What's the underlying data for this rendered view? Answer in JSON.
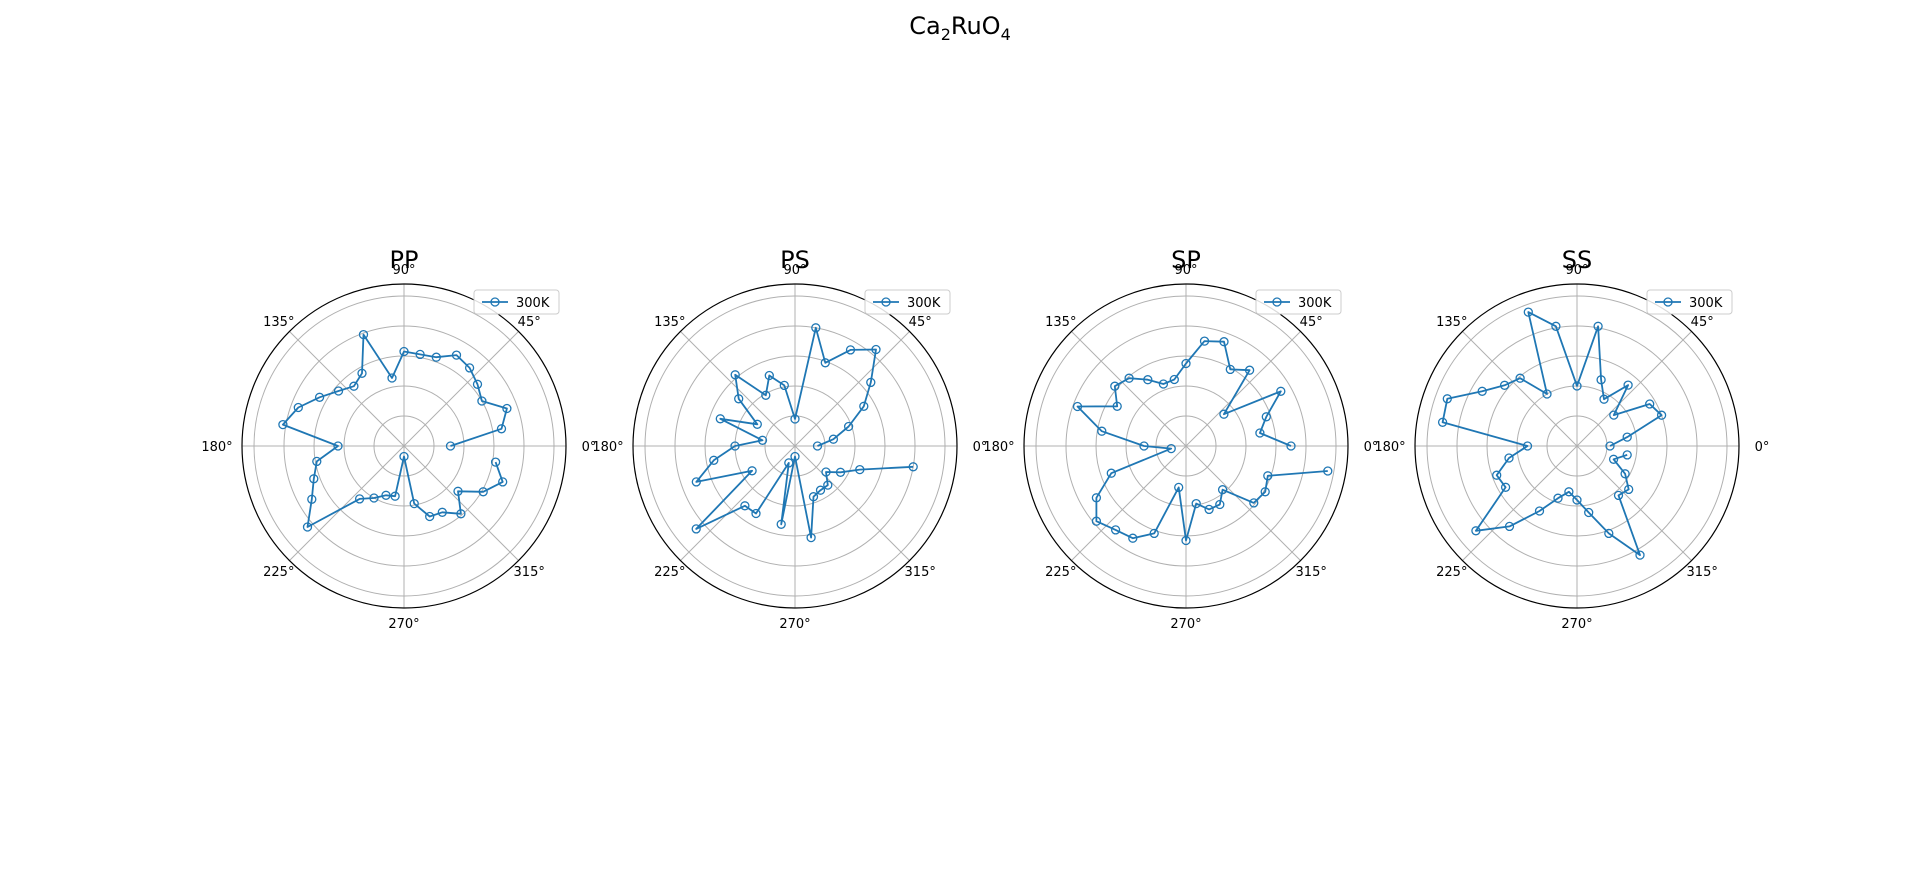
{
  "figure": {
    "suptitle": {
      "main": "Ca",
      "sub1": "2",
      "mid": "RuO",
      "sub2": "4"
    },
    "line_color": "#1f77b4",
    "grid_color": "#b0b0b0"
  },
  "chart_data": [
    {
      "type": "line",
      "projection": "polar",
      "title": "PP",
      "theta_ticks": [
        "0°",
        "45°",
        "90°",
        "135°",
        "180°",
        "225°",
        "270°",
        "315°"
      ],
      "r_rings": 5,
      "rmax": 1.0,
      "legend": {
        "label": "300K",
        "placement": "upper-right",
        "marker": "open-circle"
      },
      "series": [
        {
          "name": "300K",
          "theta_deg": [
            0,
            10,
            20,
            30,
            40,
            50,
            60,
            70,
            80,
            90,
            100,
            110,
            120,
            130,
            140,
            150,
            160,
            170,
            180,
            190,
            200,
            210,
            220,
            230,
            240,
            250,
            260,
            270,
            280,
            290,
            300,
            310,
            320,
            330,
            340,
            350
          ],
          "r": [
            0.31,
            0.66,
            0.73,
            0.6,
            0.64,
            0.68,
            0.7,
            0.63,
            0.62,
            0.63,
            0.46,
            0.79,
            0.56,
            0.52,
            0.57,
            0.65,
            0.75,
            0.82,
            0.44,
            0.59,
            0.64,
            0.71,
            0.84,
            0.46,
            0.4,
            0.35,
            0.34,
            0.07,
            0.39,
            0.5,
            0.51,
            0.59,
            0.47,
            0.61,
            0.7,
            0.62
          ]
        }
      ]
    },
    {
      "type": "line",
      "projection": "polar",
      "title": "PS",
      "theta_ticks": [
        "0°",
        "45°",
        "90°",
        "135°",
        "180°",
        "225°",
        "270°",
        "315°"
      ],
      "r_rings": 5,
      "rmax": 1.0,
      "legend": {
        "label": "300K",
        "placement": "upper-right",
        "marker": "open-circle"
      },
      "series": [
        {
          "name": "300K",
          "theta_deg": [
            0,
            10,
            20,
            30,
            40,
            50,
            60,
            70,
            80,
            90,
            100,
            110,
            120,
            130,
            140,
            150,
            160,
            170,
            180,
            190,
            200,
            210,
            220,
            230,
            240,
            250,
            260,
            270,
            280,
            290,
            300,
            310,
            320,
            330,
            340,
            350
          ],
          "r": [
            0.15,
            0.26,
            0.38,
            0.53,
            0.66,
            0.84,
            0.74,
            0.59,
            0.8,
            0.18,
            0.41,
            0.5,
            0.39,
            0.62,
            0.49,
            0.29,
            0.53,
            0.22,
            0.4,
            0.55,
            0.7,
            0.33,
            0.86,
            0.52,
            0.52,
            0.12,
            0.53,
            0.07,
            0.62,
            0.36,
            0.34,
            0.34,
            0.27,
            0.35,
            0.46,
            0.8
          ]
        }
      ]
    },
    {
      "type": "line",
      "projection": "polar",
      "title": "SP",
      "theta_ticks": [
        "0°",
        "45°",
        "90°",
        "135°",
        "180°",
        "225°",
        "270°",
        "315°"
      ],
      "r_rings": 5,
      "rmax": 1.0,
      "legend": {
        "label": "300K",
        "placement": "upper-right",
        "marker": "open-circle"
      },
      "series": [
        {
          "name": "300K",
          "theta_deg": [
            0,
            10,
            20,
            30,
            40,
            50,
            60,
            70,
            80,
            90,
            100,
            110,
            120,
            130,
            140,
            150,
            160,
            170,
            180,
            190,
            200,
            210,
            220,
            230,
            240,
            250,
            260,
            270,
            280,
            290,
            300,
            310,
            320,
            330,
            340,
            350
          ],
          "r": [
            0.7,
            0.5,
            0.57,
            0.73,
            0.33,
            0.66,
            0.59,
            0.74,
            0.71,
            0.55,
            0.45,
            0.44,
            0.51,
            0.59,
            0.62,
            0.53,
            0.77,
            0.57,
            0.28,
            0.1,
            0.53,
            0.69,
            0.78,
            0.73,
            0.71,
            0.62,
            0.28,
            0.63,
            0.39,
            0.45,
            0.45,
            0.38,
            0.59,
            0.61,
            0.58,
            0.96
          ]
        }
      ]
    },
    {
      "type": "line",
      "projection": "polar",
      "title": "SS",
      "theta_ticks": [
        "0°",
        "45°",
        "90°",
        "135°",
        "180°",
        "225°",
        "270°",
        "315°"
      ],
      "r_rings": 5,
      "rmax": 1.0,
      "legend": {
        "label": "300K",
        "placement": "upper-right",
        "marker": "open-circle"
      },
      "series": [
        {
          "name": "300K",
          "theta_deg": [
            0,
            10,
            20,
            30,
            40,
            50,
            60,
            70,
            80,
            90,
            100,
            110,
            120,
            130,
            140,
            150,
            160,
            170,
            180,
            190,
            200,
            210,
            220,
            230,
            240,
            250,
            260,
            270,
            280,
            290,
            300,
            310,
            320,
            330,
            340,
            350
          ],
          "r": [
            0.22,
            0.34,
            0.6,
            0.56,
            0.32,
            0.53,
            0.36,
            0.47,
            0.81,
            0.4,
            0.81,
            0.95,
            0.4,
            0.59,
            0.63,
            0.73,
            0.92,
            0.91,
            0.33,
            0.46,
            0.57,
            0.55,
            0.88,
            0.7,
            0.5,
            0.37,
            0.31,
            0.36,
            0.45,
            0.62,
            0.84,
            0.43,
            0.45,
            0.37,
            0.26,
            0.34
          ]
        }
      ]
    }
  ]
}
